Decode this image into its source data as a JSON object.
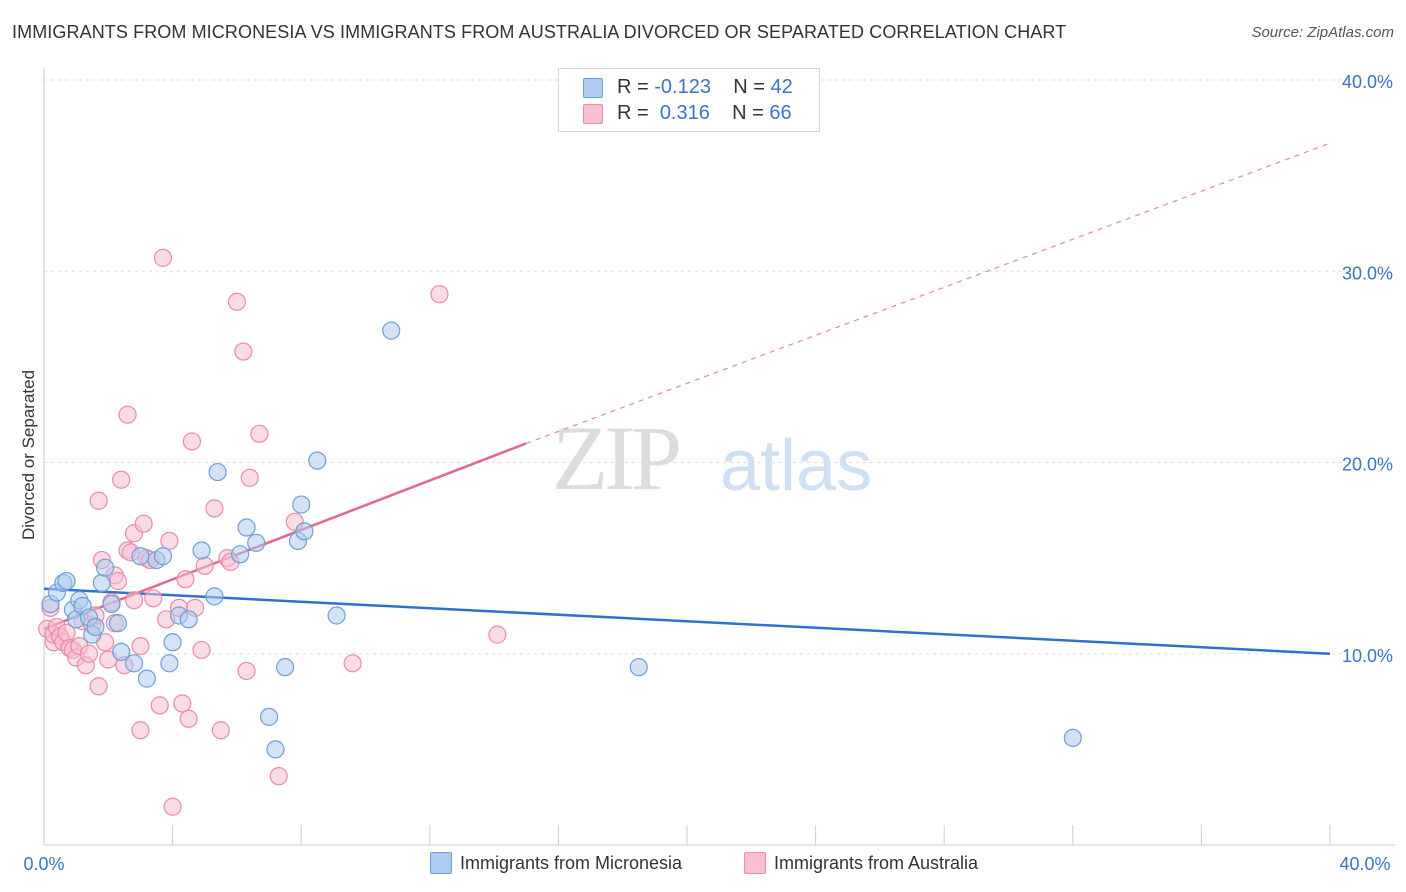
{
  "title": "IMMIGRANTS FROM MICRONESIA VS IMMIGRANTS FROM AUSTRALIA DIVORCED OR SEPARATED CORRELATION CHART",
  "source": "Source: ZipAtlas.com",
  "watermark": {
    "zip": "ZIP",
    "atlas": "atlas"
  },
  "legend": {
    "rows": [
      {
        "r_label": "R =",
        "r_value": "-0.123",
        "n_label": "N =",
        "n_value": "42"
      },
      {
        "r_label": "R =",
        "r_value": "0.316",
        "n_label": "N =",
        "n_value": "66"
      }
    ]
  },
  "colors": {
    "blue_fill": "#aecbef",
    "blue_stroke": "#6f9fd8",
    "blue_line": "#2f72cc",
    "pink_fill": "#f8bfd0",
    "pink_stroke": "#ea8aa8",
    "pink_line": "#e0688f",
    "axis_label": "#3a74c4",
    "grid": "#dddddd"
  },
  "chart_data": {
    "type": "scatter",
    "title": "IMMIGRANTS FROM MICRONESIA VS IMMIGRANTS FROM AUSTRALIA DIVORCED OR SEPARATED CORRELATION CHART",
    "xlabel": "",
    "ylabel": "Divorced or Separated",
    "xlim": [
      0,
      40
    ],
    "ylim": [
      0,
      40
    ],
    "x_tick_labels": [
      "0.0%",
      "40.0%"
    ],
    "y_ticks": [
      10,
      20,
      30,
      40
    ],
    "y_tick_labels": [
      "10.0%",
      "20.0%",
      "30.0%",
      "40.0%"
    ],
    "grid": true,
    "legend_position": "top-center",
    "series": [
      {
        "name": "Immigrants from Micronesia",
        "color": "#aecbef",
        "points": [
          [
            0.2,
            12.6
          ],
          [
            0.4,
            13.2
          ],
          [
            0.6,
            13.7
          ],
          [
            0.7,
            13.8
          ],
          [
            0.9,
            12.3
          ],
          [
            1.0,
            11.8
          ],
          [
            1.1,
            12.8
          ],
          [
            1.2,
            12.5
          ],
          [
            1.4,
            11.9
          ],
          [
            1.5,
            11.0
          ],
          [
            1.6,
            11.4
          ],
          [
            1.8,
            13.7
          ],
          [
            1.9,
            14.5
          ],
          [
            2.1,
            12.6
          ],
          [
            2.3,
            11.6
          ],
          [
            2.4,
            10.1
          ],
          [
            2.8,
            9.5
          ],
          [
            3.0,
            15.1
          ],
          [
            3.2,
            8.7
          ],
          [
            3.5,
            14.9
          ],
          [
            3.7,
            15.1
          ],
          [
            3.9,
            9.5
          ],
          [
            4.0,
            10.6
          ],
          [
            4.2,
            12.0
          ],
          [
            4.5,
            11.8
          ],
          [
            4.9,
            15.4
          ],
          [
            5.3,
            13.0
          ],
          [
            5.4,
            19.5
          ],
          [
            6.1,
            15.2
          ],
          [
            6.3,
            16.6
          ],
          [
            6.6,
            15.8
          ],
          [
            7.0,
            6.7
          ],
          [
            7.2,
            5.0
          ],
          [
            7.5,
            9.3
          ],
          [
            7.9,
            15.9
          ],
          [
            8.0,
            17.8
          ],
          [
            8.1,
            16.4
          ],
          [
            8.5,
            20.1
          ],
          [
            9.1,
            12.0
          ],
          [
            10.8,
            26.9
          ],
          [
            18.5,
            9.3
          ],
          [
            32.0,
            5.6
          ]
        ],
        "trend": {
          "x": [
            0,
            40
          ],
          "y": [
            13.4,
            10.0
          ],
          "style": "solid"
        }
      },
      {
        "name": "Immigrants from Australia",
        "color": "#f8bfd0",
        "points": [
          [
            0.1,
            11.3
          ],
          [
            0.2,
            12.4
          ],
          [
            0.3,
            10.6
          ],
          [
            0.3,
            11.0
          ],
          [
            0.4,
            11.4
          ],
          [
            0.5,
            10.9
          ],
          [
            0.6,
            10.6
          ],
          [
            0.7,
            11.1
          ],
          [
            0.8,
            10.3
          ],
          [
            0.9,
            10.2
          ],
          [
            1.0,
            9.8
          ],
          [
            1.1,
            10.4
          ],
          [
            1.2,
            11.7
          ],
          [
            1.3,
            9.4
          ],
          [
            1.4,
            10.0
          ],
          [
            1.5,
            11.5
          ],
          [
            1.6,
            12.0
          ],
          [
            1.7,
            8.3
          ],
          [
            1.7,
            18.0
          ],
          [
            1.8,
            14.9
          ],
          [
            1.9,
            10.6
          ],
          [
            2.0,
            9.7
          ],
          [
            2.1,
            12.7
          ],
          [
            2.2,
            11.6
          ],
          [
            2.2,
            14.1
          ],
          [
            2.3,
            13.8
          ],
          [
            2.4,
            19.1
          ],
          [
            2.5,
            9.4
          ],
          [
            2.6,
            15.4
          ],
          [
            2.6,
            22.5
          ],
          [
            2.7,
            15.3
          ],
          [
            2.8,
            12.8
          ],
          [
            2.8,
            16.3
          ],
          [
            3.0,
            10.4
          ],
          [
            3.0,
            6.0
          ],
          [
            3.1,
            16.8
          ],
          [
            3.2,
            15.0
          ],
          [
            3.3,
            14.9
          ],
          [
            3.4,
            12.9
          ],
          [
            3.6,
            7.3
          ],
          [
            3.7,
            30.7
          ],
          [
            3.8,
            11.8
          ],
          [
            3.9,
            15.9
          ],
          [
            4.0,
            2.0
          ],
          [
            4.2,
            12.4
          ],
          [
            4.3,
            7.4
          ],
          [
            4.4,
            13.9
          ],
          [
            4.5,
            6.6
          ],
          [
            4.6,
            21.1
          ],
          [
            4.7,
            12.4
          ],
          [
            4.9,
            10.2
          ],
          [
            5.0,
            14.6
          ],
          [
            5.3,
            17.6
          ],
          [
            5.5,
            6.0
          ],
          [
            5.7,
            15.0
          ],
          [
            5.8,
            14.8
          ],
          [
            6.0,
            28.4
          ],
          [
            6.2,
            25.8
          ],
          [
            6.3,
            9.1
          ],
          [
            6.4,
            19.2
          ],
          [
            6.7,
            21.5
          ],
          [
            7.3,
            3.6
          ],
          [
            7.8,
            16.9
          ],
          [
            9.6,
            9.5
          ],
          [
            12.3,
            28.8
          ],
          [
            14.1,
            11.0
          ]
        ],
        "trend": {
          "x": [
            0,
            15
          ],
          "y": [
            11.3,
            21.0
          ],
          "style": "solid",
          "extension": {
            "x": [
              15,
              40
            ],
            "y": [
              21.0,
              36.7
            ],
            "style": "dashed"
          }
        }
      }
    ]
  }
}
